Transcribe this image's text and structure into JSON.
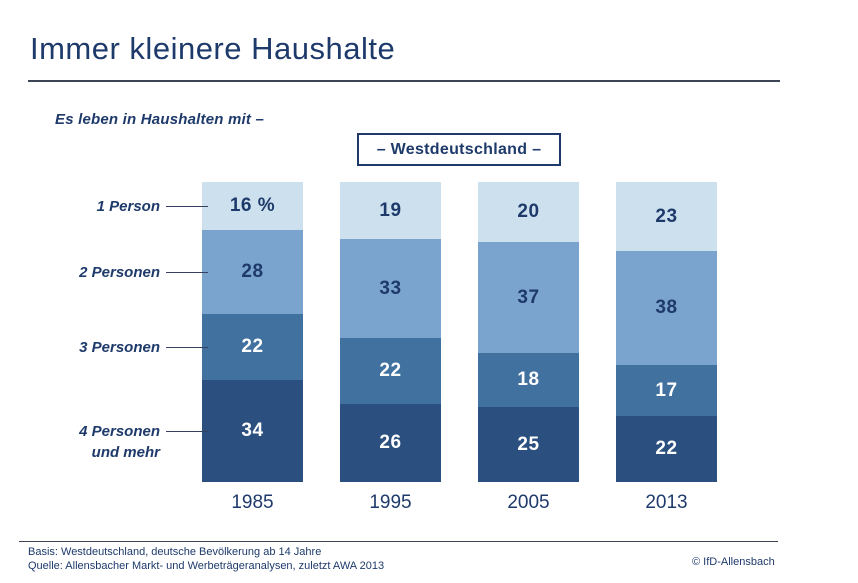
{
  "header": {
    "title": "Immer kleinere Haushalte"
  },
  "subtitle": "Es leben in Haushalten mit –",
  "region_box": "– Westdeutschland –",
  "chart_data": {
    "type": "bar",
    "stacked": true,
    "unit": "%",
    "title": "Immer kleinere Haushalte",
    "subtitle": "Es leben in Haushalten mit –",
    "region": "Westdeutschland",
    "categories": [
      "1985",
      "1995",
      "2005",
      "2013"
    ],
    "ylim": [
      0,
      100
    ],
    "legend_position": "left",
    "series": [
      {
        "name": "1 Person",
        "label": "1 Person",
        "color": "#cde0ee",
        "label_color": "#1e3a6b",
        "values": [
          16,
          19,
          20,
          23
        ],
        "display": [
          "16 %",
          "19",
          "20",
          "23"
        ]
      },
      {
        "name": "2 Personen",
        "label": "2 Personen",
        "color": "#7aa3cd",
        "label_color": "#1e3a6b",
        "values": [
          28,
          33,
          37,
          38
        ],
        "display": [
          "28",
          "33",
          "37",
          "38"
        ]
      },
      {
        "name": "3 Personen",
        "label": "3 Personen",
        "color": "#40719f",
        "label_color": "#ffffff",
        "values": [
          22,
          22,
          18,
          17
        ],
        "display": [
          "22",
          "22",
          "18",
          "17"
        ]
      },
      {
        "name": "4 Personen und mehr",
        "label": "4 Personen\nund mehr",
        "color": "#2b4f7e",
        "label_color": "#ffffff",
        "values": [
          34,
          26,
          25,
          22
        ],
        "display": [
          "34",
          "26",
          "25",
          "22"
        ]
      }
    ]
  },
  "footer": {
    "basis": "Basis: Westdeutschland, deutsche Bevölkerung ab 14 Jahre",
    "quelle": "Quelle: Allensbacher Markt- und Werbeträgeranalysen, zuletzt AWA 2013",
    "copyright": "© IfD-Allensbach"
  },
  "colors": {
    "text": "#1e3a6b",
    "rule": "#3d4456",
    "segment_1_person": "#cde0ee",
    "segment_2_personen": "#7aa3cd",
    "segment_3_personen": "#40719f",
    "segment_4_personen": "#2b4f7e"
  }
}
